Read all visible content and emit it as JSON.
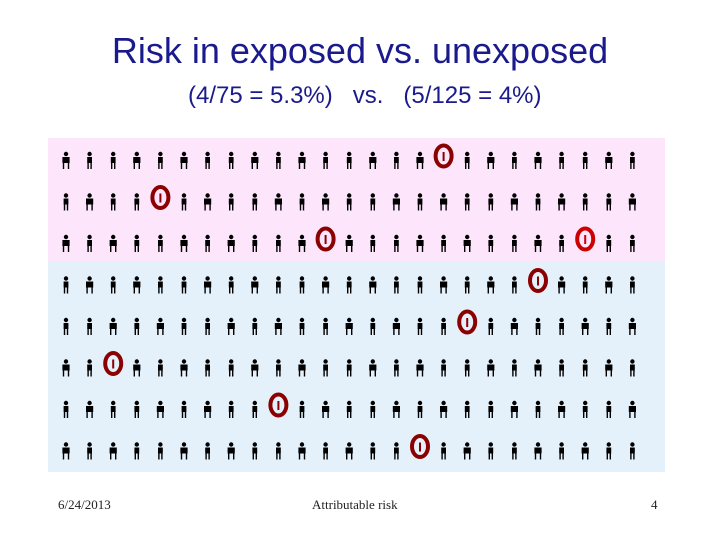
{
  "slide": {
    "title": "Risk in exposed vs. unexposed",
    "subtitle": "(4/75 = 5.3%)   vs.   (5/125 = 4%)"
  },
  "figure": {
    "columns": 25,
    "groups": [
      {
        "name": "exposed",
        "rows": 3,
        "background": "#fde5fb",
        "cases": [
          [
            0,
            16
          ],
          [
            1,
            4
          ],
          [
            2,
            11
          ],
          [
            2,
            22
          ]
        ],
        "case_colors": [
          "#8b0000",
          "#8b0000",
          "#8b0000",
          "#cc0000"
        ]
      },
      {
        "name": "unexposed",
        "rows": 5,
        "background": "#e4f1fb",
        "cases": [
          [
            0,
            20
          ],
          [
            1,
            17
          ],
          [
            2,
            2
          ],
          [
            3,
            9
          ],
          [
            4,
            15
          ]
        ],
        "case_colors": [
          "#8b0000",
          "#8b0000",
          "#8b0000",
          "#8b0000",
          "#8b0000"
        ]
      }
    ],
    "person_color": "#000000",
    "case_icon": "case-ring-icon",
    "person_icon": "person-icon"
  },
  "footer": {
    "date": "6/24/2013",
    "center": "Attributable risk",
    "page": "4"
  }
}
